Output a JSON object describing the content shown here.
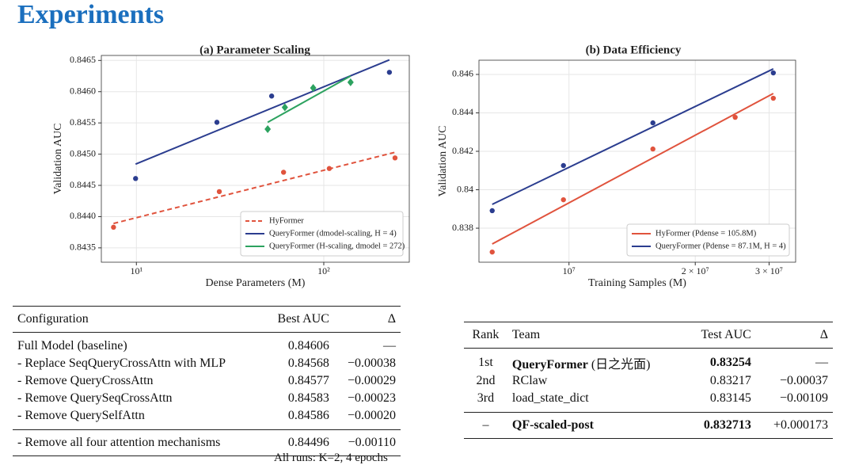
{
  "header": {
    "title": "Experiments"
  },
  "chart_data": [
    {
      "type": "scatter",
      "title": "(a) Parameter Scaling",
      "x_label": "Dense Parameters (M)",
      "y_label": "Validation AUC",
      "xscale": "log",
      "xlim": [
        6.5,
        286
      ],
      "ylim": [
        0.84327,
        0.84658
      ],
      "xticks": [
        {
          "value": 10,
          "label": "10¹"
        },
        {
          "value": 100,
          "label": "10²"
        }
      ],
      "yticks": [
        0.8435,
        {
          "value": 0.844,
          "label": "0.8440"
        },
        0.8445,
        {
          "value": 0.845,
          "label": "0.8450"
        },
        0.8455,
        {
          "value": 0.846,
          "label": "0.8460"
        },
        0.8465
      ],
      "grid": true,
      "legend": "lower right",
      "series": [
        {
          "name": "HyFormer",
          "color": "#e0533d",
          "marker": "circle",
          "dashed": true,
          "x": [
            7.55,
            27.7,
            61,
            107,
            240
          ],
          "values": [
            0.84383,
            0.8444,
            0.84471,
            0.84477,
            0.84494
          ],
          "fit_x": [
            7.55,
            240
          ],
          "fit_values": [
            0.84389,
            0.84503
          ]
        },
        {
          "name": "QueryFormer (dmodel-scaling, H = 4)",
          "color": "#2b3d8f",
          "marker": "circle",
          "dashed": false,
          "x": [
            9.9,
            26.9,
            52.7,
            224
          ],
          "values": [
            0.84461,
            0.84551,
            0.84593,
            0.84631
          ],
          "fit_x": [
            9.9,
            224
          ],
          "fit_values": [
            0.84484,
            0.84651
          ]
        },
        {
          "name": "QueryFormer (H-scaling, dmodel = 272)",
          "color": "#2ca25f",
          "marker": "diamond",
          "dashed": false,
          "x": [
            50.2,
            62,
            87.8,
            139
          ],
          "values": [
            0.8454,
            0.84575,
            0.84606,
            0.84615
          ],
          "fit_x": [
            50.2,
            139
          ],
          "fit_values": [
            0.84551,
            0.84625
          ]
        }
      ]
    },
    {
      "type": "scatter",
      "title": "(b) Data Efficiency",
      "x_label": "Training Samples (M)",
      "y_label": "Validation AUC",
      "xscale": "log",
      "xlim": [
        6100000,
        34700000
      ],
      "ylim": [
        0.83623,
        0.84674
      ],
      "xticks": [
        {
          "value": 10000000,
          "label": "10⁷"
        },
        {
          "value": 20000000,
          "label": "2 × 10⁷"
        },
        {
          "value": 30000000,
          "label": "3 × 10⁷"
        }
      ],
      "yticks": [
        0.838,
        0.84,
        0.842,
        0.844,
        0.846
      ],
      "grid": true,
      "legend": "lower right",
      "series": [
        {
          "name": "HyFormer (Pdense = 105.8M)",
          "color": "#e0533d",
          "marker": "circle",
          "dashed": false,
          "x": [
            6560000,
            9700000,
            15850000,
            24900000,
            30700000
          ],
          "values": [
            0.83676,
            0.83948,
            0.84212,
            0.84377,
            0.84476
          ],
          "fit_x": [
            6560000,
            30700000
          ],
          "fit_values": [
            0.83718,
            0.84501
          ]
        },
        {
          "name": "QueryFormer (Pdense = 87.1M, H = 4)",
          "color": "#2b3d8f",
          "marker": "circle",
          "dashed": false,
          "x": [
            6560000,
            9700000,
            15850000,
            30700000
          ],
          "values": [
            0.83891,
            0.84126,
            0.84348,
            0.84608
          ],
          "fit_x": [
            6560000,
            30700000
          ],
          "fit_values": [
            0.83924,
            0.84629
          ]
        }
      ]
    }
  ],
  "table_1": {
    "columns": [
      "Configuration",
      "Best AUC",
      "Δ"
    ],
    "rows": [
      [
        "Full Model (baseline)",
        "0.84606",
        "—"
      ],
      [
        "- Replace SeqQueryCrossAttn with MLP",
        "0.84568",
        "−0.00038"
      ],
      [
        "- Remove QueryCrossAttn",
        "0.84577",
        "−0.00029"
      ],
      [
        "- Remove QuerySeqCrossAttn",
        "0.84583",
        "−0.00023"
      ],
      [
        "- Remove QuerySelfAttn",
        "0.84586",
        "−0.00020"
      ]
    ],
    "final_row": [
      "- Remove all four attention mechanisms",
      "0.84496",
      "−0.00110"
    ],
    "note": "All runs: K=2, 4 epochs"
  },
  "table_2": {
    "columns": [
      "Rank",
      "Team",
      "Test AUC",
      "Δ"
    ],
    "rows": [
      {
        "rank": "1st",
        "team": "QueryFormer",
        "team_suffix": "(日之光面)",
        "auc": "0.83254",
        "delta": "—",
        "bold": true
      },
      {
        "rank": "2nd",
        "team": "RClaw",
        "auc": "0.83217",
        "delta": "−0.00037",
        "bold": false
      },
      {
        "rank": "3rd",
        "team": "load_state_dict",
        "auc": "0.83145",
        "delta": "−0.00109",
        "bold": false
      }
    ],
    "final_row": {
      "rank": "–",
      "team": "QF-scaled-post",
      "auc": "0.832713",
      "delta": "+0.000173",
      "bold": true
    }
  }
}
